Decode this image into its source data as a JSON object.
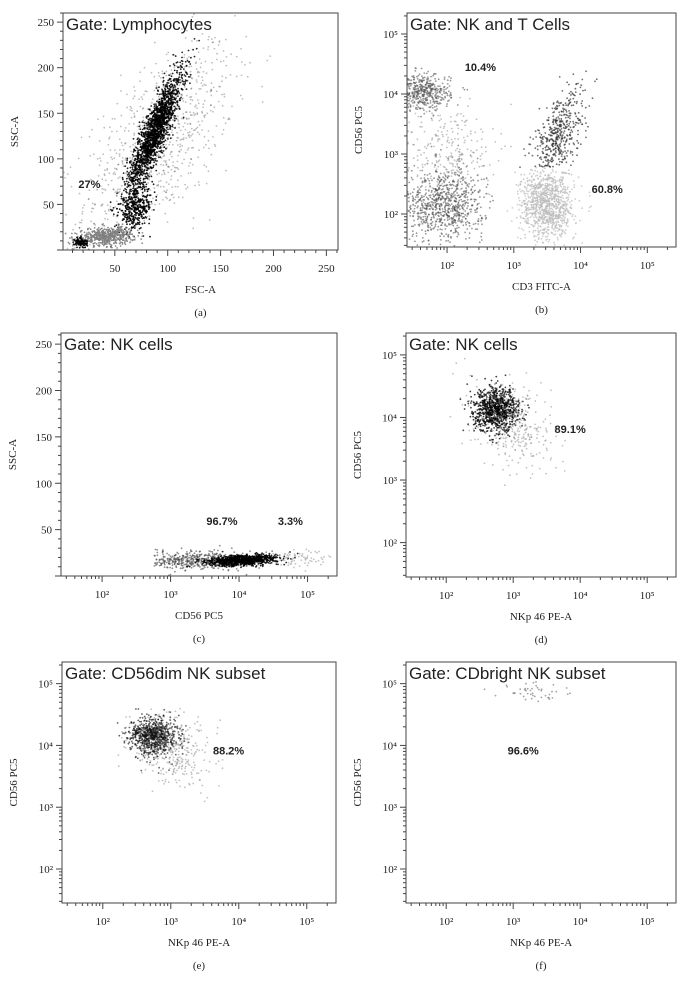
{
  "chart_data": [
    {
      "type": "scatter",
      "caption": "(a)",
      "title": "Gate: Lymphocytes",
      "xlabel": "FSC-A",
      "ylabel": "SSC-A",
      "xscale": "linear",
      "yscale": "linear",
      "xlim": [
        1,
        261
      ],
      "ylim": [
        0,
        260
      ],
      "xticks": [
        {
          "v": 50,
          "label": "50"
        },
        {
          "v": 100,
          "label": "100"
        },
        {
          "v": 150,
          "label": "150"
        },
        {
          "v": 200,
          "label": "200"
        },
        {
          "v": 250,
          "label": "250"
        }
      ],
      "yticks": [
        {
          "v": 50,
          "label": "50"
        },
        {
          "v": 100,
          "label": "100"
        },
        {
          "v": 150,
          "label": "150"
        },
        {
          "v": 200,
          "label": "200"
        },
        {
          "v": 250,
          "label": "250"
        }
      ],
      "annotations": [
        {
          "text": "27%",
          "x": 26,
          "y": 68
        }
      ],
      "clusters": [
        {
          "cx": 92,
          "cy": 120,
          "sx": 35,
          "sy": 55,
          "rho": 0.6,
          "n": 900,
          "color": "#000000",
          "opacity": 0.25
        },
        {
          "cx": 88,
          "cy": 130,
          "sx": 13,
          "sy": 33,
          "rho": 0.88,
          "n": 1800,
          "color": "#000000",
          "opacity": 0.85
        },
        {
          "cx": 70,
          "cy": 45,
          "sx": 8,
          "sy": 11,
          "rho": 0.3,
          "n": 350,
          "color": "#000000",
          "opacity": 0.9
        },
        {
          "cx": 42,
          "cy": 15,
          "sx": 13,
          "sy": 5,
          "rho": 0.2,
          "n": 500,
          "color": "#808080",
          "opacity": 0.9
        },
        {
          "cx": 18,
          "cy": 8,
          "sx": 3,
          "sy": 3,
          "rho": 0,
          "n": 100,
          "color": "#000000",
          "opacity": 0.9
        }
      ]
    },
    {
      "type": "scatter",
      "caption": "(b)",
      "title": "Gate: NK and T Cells",
      "xlabel": "CD3 FITC-A",
      "ylabel": "CD56 PC5",
      "xscale": "log",
      "yscale": "log",
      "xlim": [
        1.4,
        5.43
      ],
      "ylim": [
        1.45,
        5.35
      ],
      "xticks": [
        {
          "v": 2,
          "label": "10²"
        },
        {
          "v": 3,
          "label": "10³"
        },
        {
          "v": 4,
          "label": "10⁴"
        },
        {
          "v": 5,
          "label": "10⁵"
        }
      ],
      "yticks": [
        {
          "v": 2,
          "label": "10²"
        },
        {
          "v": 3,
          "label": "10³"
        },
        {
          "v": 4,
          "label": "10⁴"
        },
        {
          "v": 5,
          "label": "10⁵"
        }
      ],
      "annotations": [
        {
          "text": "10.4%",
          "x": 2.5,
          "y": 4.38
        },
        {
          "text": "60.8%",
          "x": 4.4,
          "y": 2.35
        }
      ],
      "clusters": [
        {
          "cx": 1.65,
          "cy": 4.02,
          "sx": 0.2,
          "sy": 0.15,
          "rho": 0,
          "n": 450,
          "color": "#555555",
          "opacity": 0.6
        },
        {
          "cx": 1.95,
          "cy": 2.15,
          "sx": 0.3,
          "sy": 0.3,
          "rho": 0,
          "n": 800,
          "color": "#444444",
          "opacity": 0.55
        },
        {
          "cx": 2.0,
          "cy": 3.0,
          "sx": 0.35,
          "sy": 0.45,
          "rho": 0,
          "n": 300,
          "color": "#666666",
          "opacity": 0.4
        },
        {
          "cx": 3.65,
          "cy": 3.3,
          "sx": 0.2,
          "sy": 0.4,
          "rho": 0.6,
          "n": 450,
          "color": "#333333",
          "opacity": 0.7,
          "ymin": 2.78
        },
        {
          "cx": 3.5,
          "cy": 2.15,
          "sx": 0.2,
          "sy": 0.3,
          "rho": 0,
          "n": 1000,
          "color": "#bbbbbb",
          "opacity": 0.7,
          "ymax": 2.78
        }
      ]
    },
    {
      "type": "scatter",
      "caption": "(c)",
      "title": "Gate: NK cells",
      "xlabel": "CD56 PC5",
      "ylabel": "SSC-A",
      "xscale": "log",
      "yscale": "linear",
      "xlim": [
        1.4,
        5.43
      ],
      "ylim": [
        0,
        262
      ],
      "xticks": [
        {
          "v": 2,
          "label": "10²"
        },
        {
          "v": 3,
          "label": "10³"
        },
        {
          "v": 4,
          "label": "10⁴"
        },
        {
          "v": 5,
          "label": "10⁵"
        }
      ],
      "yticks": [
        {
          "v": 50,
          "label": "50"
        },
        {
          "v": 100,
          "label": "100"
        },
        {
          "v": 150,
          "label": "150"
        },
        {
          "v": 200,
          "label": "200"
        },
        {
          "v": 250,
          "label": "250"
        }
      ],
      "annotations": [
        {
          "text": "96.7%",
          "x": 3.75,
          "y": 55
        },
        {
          "text": "3.3%",
          "x": 4.75,
          "y": 55
        }
      ],
      "clusters": [
        {
          "cx": 3.35,
          "cy": 17,
          "sx": 0.4,
          "sy": 5,
          "rho": 0,
          "n": 450,
          "color": "#444444",
          "opacity": 0.6,
          "xmin": 2.75
        },
        {
          "cx": 4.05,
          "cy": 17,
          "sx": 0.25,
          "sy": 2.8,
          "rho": 0.3,
          "n": 1000,
          "color": "#000000",
          "opacity": 0.85
        },
        {
          "cx": 4.9,
          "cy": 18,
          "sx": 0.2,
          "sy": 5,
          "rho": 0,
          "n": 70,
          "color": "#aaaaaa",
          "opacity": 0.7
        }
      ]
    },
    {
      "type": "scatter",
      "caption": "(d)",
      "title": "Gate: NK cells",
      "xlabel": "NKp 46 PE-A",
      "ylabel": "CD56 PC5",
      "xscale": "log",
      "yscale": "log",
      "xlim": [
        1.4,
        5.43
      ],
      "ylim": [
        1.45,
        5.35
      ],
      "xticks": [
        {
          "v": 2,
          "label": "10²"
        },
        {
          "v": 3,
          "label": "10³"
        },
        {
          "v": 4,
          "label": "10⁴"
        },
        {
          "v": 5,
          "label": "10⁵"
        }
      ],
      "yticks": [
        {
          "v": 2,
          "label": "10²"
        },
        {
          "v": 3,
          "label": "10³"
        },
        {
          "v": 4,
          "label": "10⁴"
        },
        {
          "v": 5,
          "label": "10⁵"
        }
      ],
      "annotations": [
        {
          "text": "89.1%",
          "x": 3.85,
          "y": 3.75
        }
      ],
      "clusters": [
        {
          "cx": 2.75,
          "cy": 4.12,
          "sx": 0.17,
          "sy": 0.17,
          "rho": 0,
          "n": 900,
          "color": "#000000",
          "opacity": 0.75
        },
        {
          "cx": 3.0,
          "cy": 3.9,
          "sx": 0.3,
          "sy": 0.35,
          "rho": -0.3,
          "n": 350,
          "color": "#888888",
          "opacity": 0.5
        }
      ]
    },
    {
      "type": "scatter",
      "caption": "(e)",
      "title": "Gate: CD56dim NK subset",
      "xlabel": "NKp 46 PE-A",
      "ylabel": "CD56 PC5",
      "xscale": "log",
      "yscale": "log",
      "xlim": [
        1.4,
        5.43
      ],
      "ylim": [
        1.45,
        5.35
      ],
      "xticks": [
        {
          "v": 2,
          "label": "10²"
        },
        {
          "v": 3,
          "label": "10³"
        },
        {
          "v": 4,
          "label": "10⁴"
        },
        {
          "v": 5,
          "label": "10⁵"
        }
      ],
      "yticks": [
        {
          "v": 2,
          "label": "10²"
        },
        {
          "v": 3,
          "label": "10³"
        },
        {
          "v": 4,
          "label": "10⁴"
        },
        {
          "v": 5,
          "label": "10⁵"
        }
      ],
      "annotations": [
        {
          "text": "88.2%",
          "x": 3.85,
          "y": 3.85
        }
      ],
      "clusters": [
        {
          "cx": 2.75,
          "cy": 4.15,
          "sx": 0.17,
          "sy": 0.15,
          "rho": 0,
          "n": 800,
          "color": "#111111",
          "opacity": 0.65,
          "ymax": 4.6
        },
        {
          "cx": 3.0,
          "cy": 3.95,
          "sx": 0.3,
          "sy": 0.3,
          "rho": -0.3,
          "n": 350,
          "color": "#888888",
          "opacity": 0.5,
          "ymax": 4.6
        }
      ]
    },
    {
      "type": "scatter",
      "caption": "(f)",
      "title": "Gate: CDbright NK subset",
      "xlabel": "NKp 46 PE-A",
      "ylabel": "CD56 PC5",
      "xscale": "log",
      "yscale": "log",
      "xlim": [
        1.4,
        5.43
      ],
      "ylim": [
        1.45,
        5.35
      ],
      "xticks": [
        {
          "v": 2,
          "label": "10²"
        },
        {
          "v": 3,
          "label": "10³"
        },
        {
          "v": 4,
          "label": "10⁴"
        },
        {
          "v": 5,
          "label": "10⁵"
        }
      ],
      "yticks": [
        {
          "v": 2,
          "label": "10²"
        },
        {
          "v": 3,
          "label": "10³"
        },
        {
          "v": 4,
          "label": "10⁴"
        },
        {
          "v": 5,
          "label": "10⁵"
        }
      ],
      "annotations": [
        {
          "text": "96.6%",
          "x": 3.15,
          "y": 3.85
        }
      ],
      "clusters": [
        {
          "cx": 3.3,
          "cy": 4.85,
          "sx": 0.25,
          "sy": 0.08,
          "rho": 0,
          "n": 45,
          "color": "#666666",
          "opacity": 0.6
        }
      ]
    }
  ]
}
